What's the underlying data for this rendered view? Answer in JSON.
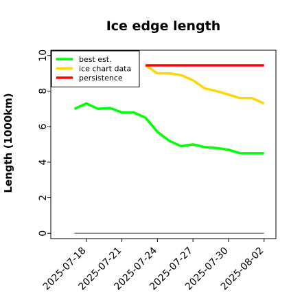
{
  "chart_data": {
    "type": "line",
    "title": "Ice edge length",
    "xlabel": "",
    "ylabel": "Length (1000km)",
    "ylim": [
      -0.3,
      10.3
    ],
    "xlim": [
      "2025-07-15",
      "2025-08-03"
    ],
    "y_ticks": [
      "0",
      "2",
      "4",
      "6",
      "8",
      "10"
    ],
    "x_ticks": [
      "2025-07-18",
      "2025-07-21",
      "2025-07-24",
      "2025-07-27",
      "2025-07-30",
      "2025-08-02"
    ],
    "grid": false,
    "legend_position": "upper-left",
    "series": [
      {
        "name": "best est.",
        "color": "#00ff00",
        "x": [
          "2025-07-17",
          "2025-07-18",
          "2025-07-19",
          "2025-07-20",
          "2025-07-21",
          "2025-07-22",
          "2025-07-23",
          "2025-07-24",
          "2025-07-25",
          "2025-07-26",
          "2025-07-27",
          "2025-07-28",
          "2025-07-29",
          "2025-07-30",
          "2025-07-31",
          "2025-08-01",
          "2025-08-02"
        ],
        "values": [
          7.0,
          7.3,
          7.0,
          7.05,
          6.8,
          6.8,
          6.5,
          5.7,
          5.2,
          4.9,
          5.0,
          4.85,
          4.8,
          4.7,
          4.5,
          4.5,
          4.5
        ]
      },
      {
        "name": "ice chart data",
        "color": "#ffd700",
        "x": [
          "2025-07-23",
          "2025-07-24",
          "2025-07-25",
          "2025-07-26",
          "2025-07-27",
          "2025-07-28",
          "2025-07-29",
          "2025-07-30",
          "2025-07-31",
          "2025-08-01",
          "2025-08-02"
        ],
        "values": [
          9.45,
          9.0,
          9.0,
          8.9,
          8.6,
          8.15,
          8.0,
          7.8,
          7.6,
          7.6,
          7.3
        ]
      },
      {
        "name": "persistence",
        "color": "#ff0000",
        "x": [
          "2025-07-23",
          "2025-08-02"
        ],
        "values": [
          9.45,
          9.45
        ]
      },
      {
        "color": "#808080",
        "x": [
          "2025-07-17",
          "2025-08-02"
        ],
        "values": [
          0,
          0
        ]
      }
    ]
  }
}
